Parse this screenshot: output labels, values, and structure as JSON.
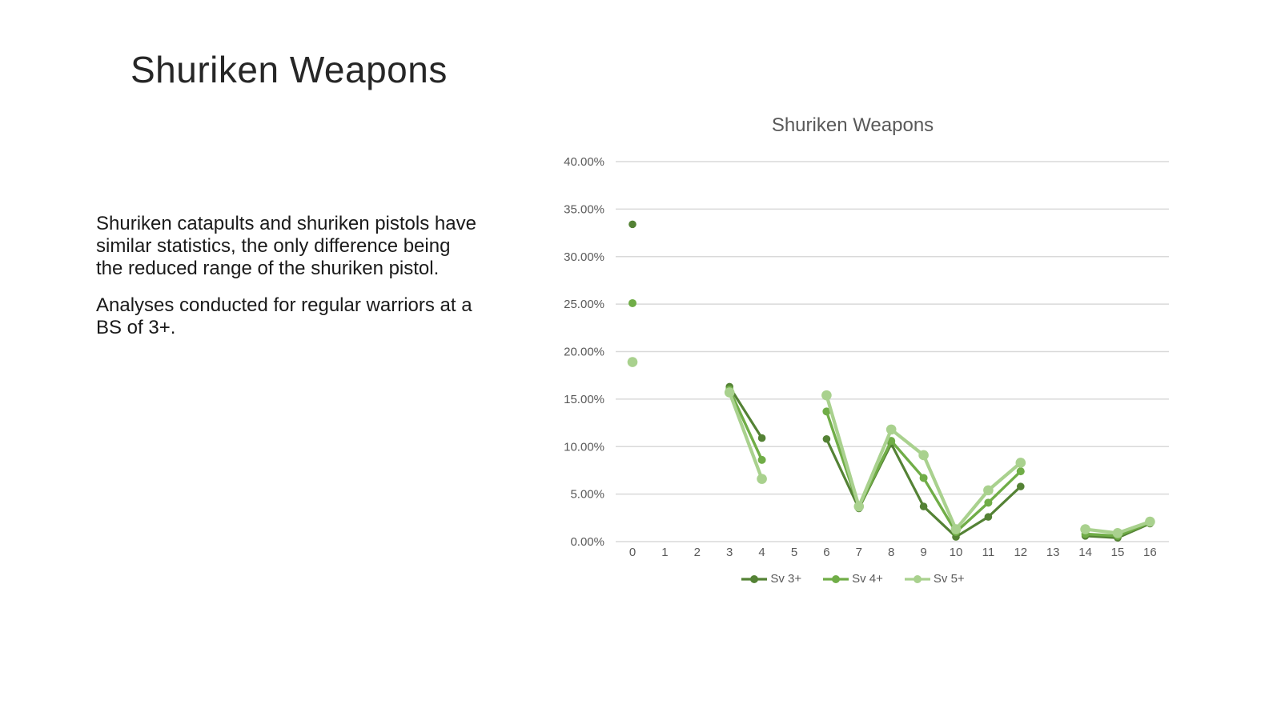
{
  "slide": {
    "title": "Shuriken Weapons",
    "paragraphs": [
      {
        "lines": [
          "Shuriken catapults and shuriken pistols have",
          "similar statistics, the only difference being",
          "the reduced range of the shuriken pistol."
        ]
      },
      {
        "lines": [
          "Analyses conducted for regular warriors at a",
          "BS of 3+."
        ]
      }
    ]
  },
  "chart_data": {
    "type": "line",
    "title": "Shuriken Weapons",
    "xlabel": "",
    "ylabel": "",
    "categories": [
      0,
      1,
      2,
      3,
      4,
      5,
      6,
      7,
      8,
      9,
      10,
      11,
      12,
      13,
      14,
      15,
      16
    ],
    "series": [
      {
        "name": "Sv 3+",
        "color": "#548235",
        "values": [
          33.4,
          null,
          null,
          16.3,
          10.9,
          null,
          10.8,
          3.5,
          10.3,
          3.7,
          0.5,
          2.6,
          5.8,
          null,
          0.6,
          0.4,
          1.9
        ]
      },
      {
        "name": "Sv 4+",
        "color": "#70AD47",
        "values": [
          25.1,
          null,
          null,
          16.0,
          8.6,
          null,
          13.7,
          3.6,
          10.6,
          6.7,
          1.0,
          4.1,
          7.4,
          null,
          0.8,
          0.6,
          2.0
        ]
      },
      {
        "name": "Sv 5+",
        "color": "#A9D18E",
        "values": [
          18.9,
          null,
          null,
          15.7,
          6.6,
          null,
          15.4,
          3.7,
          11.8,
          9.1,
          1.3,
          5.4,
          8.3,
          null,
          1.3,
          0.9,
          2.1
        ]
      }
    ],
    "ylim": [
      0,
      40
    ],
    "ytick_values": [
      0,
      5,
      10,
      15,
      20,
      25,
      30,
      35,
      40
    ],
    "ytick_labels": [
      "0.00%",
      "5.00%",
      "10.00%",
      "15.00%",
      "20.00%",
      "25.00%",
      "30.00%",
      "35.00%",
      "40.00%"
    ],
    "grid": true,
    "legend_position": "bottom",
    "colors": {
      "grid_line": "#D9D9D9",
      "axis_text": "#595959",
      "chart_title": "#595959"
    }
  }
}
